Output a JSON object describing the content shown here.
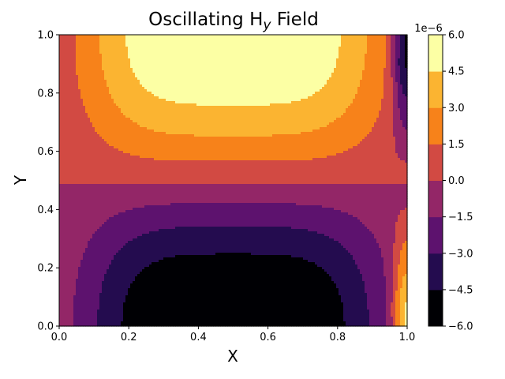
{
  "chart_data": {
    "type": "contourf",
    "title_main": "Oscillating H",
    "title_sub": "y",
    "title_tail": " Field",
    "xlabel": "X",
    "ylabel": "Y",
    "xlim": [
      0.0,
      1.0
    ],
    "ylim": [
      0.0,
      1.0
    ],
    "xticks": [
      "0.0",
      "0.2",
      "0.4",
      "0.6",
      "0.8",
      "1.0"
    ],
    "yticks": [
      "0.0",
      "0.2",
      "0.4",
      "0.6",
      "0.8",
      "1.0"
    ],
    "colorbar": {
      "levels": [
        -6.0,
        -4.5,
        -3.0,
        -1.5,
        0.0,
        1.5,
        3.0,
        4.5,
        6.0
      ],
      "tick_labels": [
        "−6.0",
        "−4.5",
        "−3.0",
        "−1.5",
        "0.0",
        "1.5",
        "3.0",
        "4.5",
        "6.0"
      ],
      "offset_label": "1e−6",
      "colormap": "inferno",
      "colors": [
        "#000004",
        "#240c4f",
        "#5d126e",
        "#932667",
        "#d24a43",
        "#f7821a",
        "#fbb431",
        "#fcffa4"
      ]
    },
    "field": {
      "description_values": "Hy ~ A*cos(pi*y)*bell(x) + edge term near x=1",
      "amplitude": 6.0,
      "zero_line_y": 0.49
    }
  }
}
